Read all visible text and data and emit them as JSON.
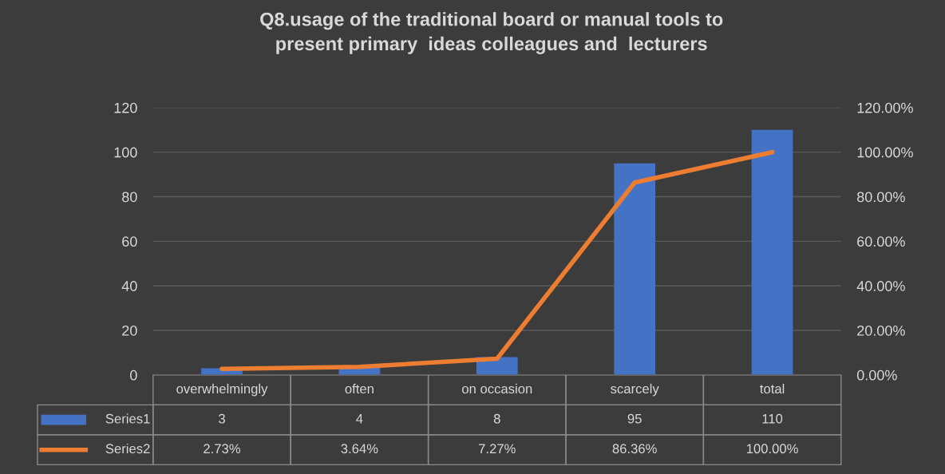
{
  "chart_data": {
    "type": "bar",
    "title": "Q8.usage of the traditional board or manual tools to\npresent primary  ideas colleagues and  lecturers",
    "categories": [
      "overwhelmingly",
      "often",
      "on occasion",
      "scarcely",
      "total"
    ],
    "series": [
      {
        "name": "Series1",
        "color": "#4472c4",
        "values": [
          3,
          4,
          8,
          95,
          110
        ],
        "value_labels": [
          "3",
          "4",
          "8",
          "95",
          "110"
        ]
      },
      {
        "name": "Series2",
        "type": "line",
        "axis": "y2",
        "color": "#ed7d31",
        "values": [
          2.73,
          3.64,
          7.27,
          86.36,
          100.0
        ],
        "value_labels": [
          "2.73%",
          "3.64%",
          "7.27%",
          "86.36%",
          "100.00%"
        ],
        "marker": "none",
        "line_style": "solid"
      }
    ],
    "ylim": [
      0,
      120
    ],
    "yticks": [
      0,
      20,
      40,
      60,
      80,
      100,
      120
    ],
    "y2lim": [
      0,
      120
    ],
    "y2ticks": [
      {
        "value": 0,
        "label": "0.00%"
      },
      {
        "value": 20,
        "label": "20.00%"
      },
      {
        "value": 40,
        "label": "40.00%"
      },
      {
        "value": 60,
        "label": "60.00%"
      },
      {
        "value": 80,
        "label": "80.00%"
      },
      {
        "value": 100,
        "label": "100.00%"
      },
      {
        "value": 120,
        "label": "120.00%"
      }
    ],
    "grid": "y",
    "legend": "bottom"
  }
}
